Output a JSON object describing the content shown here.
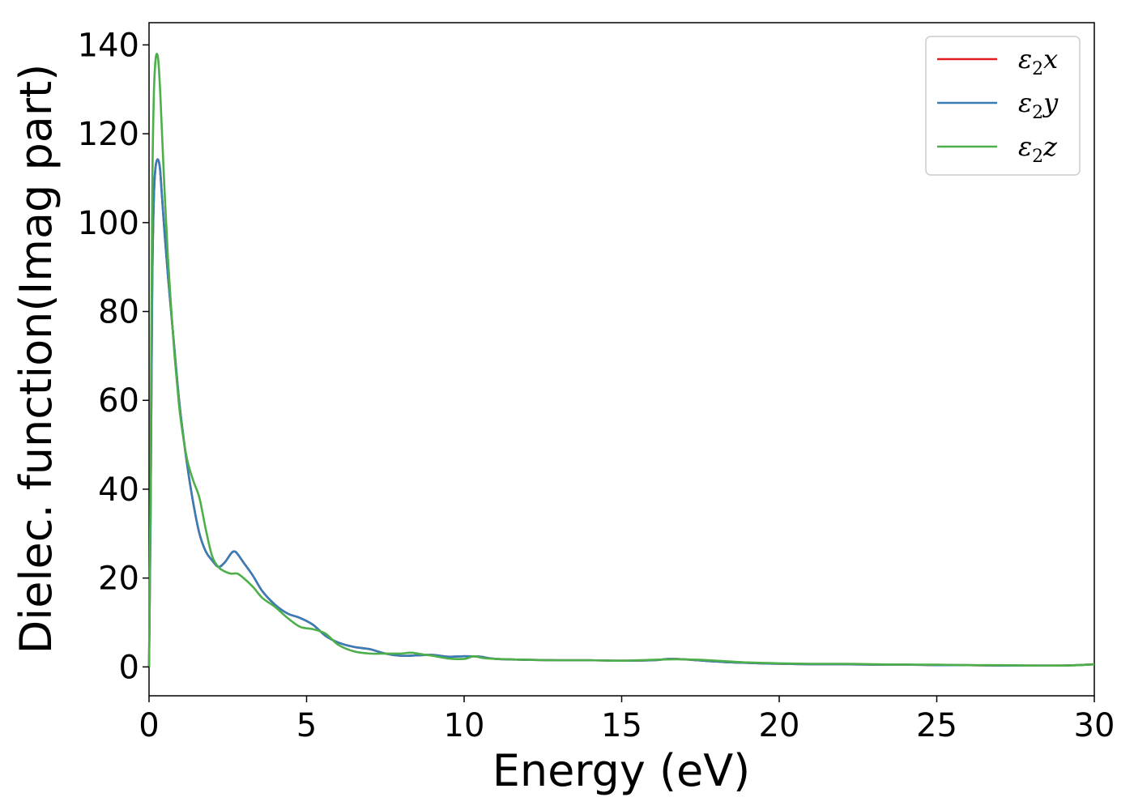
{
  "chart_data": {
    "type": "line",
    "title": "",
    "xlabel": "Energy (eV)",
    "ylabel": "Dielec. function(Imag part)",
    "xlim": [
      0,
      30
    ],
    "ylim": [
      -6.5,
      145
    ],
    "xticks": [
      0,
      5,
      10,
      15,
      20,
      25,
      30
    ],
    "yticks": [
      0,
      20,
      40,
      60,
      80,
      100,
      120,
      140
    ],
    "grid": false,
    "legend_position": "top-right",
    "series": [
      {
        "name": "ε2x",
        "legend_symbol": "ε",
        "legend_sub": "2",
        "legend_axis": "x",
        "color": "#e41a1c",
        "x": [
          0,
          0.05,
          0.1,
          0.15,
          0.2,
          0.25,
          0.3,
          0.35,
          0.4,
          0.5,
          0.6,
          0.7,
          0.8,
          0.9,
          1.0,
          1.2,
          1.4,
          1.6,
          1.8,
          2.0,
          2.2,
          2.4,
          2.6,
          2.7,
          2.8,
          3.0,
          3.3,
          3.6,
          4.0,
          4.4,
          4.8,
          5.2,
          5.6,
          6.0,
          6.5,
          7.0,
          7.5,
          8.0,
          8.5,
          9.0,
          9.5,
          10.0,
          10.5,
          11.0,
          12.0,
          13.0,
          14.0,
          15.0,
          16.0,
          16.5,
          17.0,
          18.0,
          19.0,
          20.0,
          21.0,
          22.0,
          23.0,
          24.0,
          25.0,
          26.0,
          27.0,
          28.0,
          29.0,
          29.5,
          30.0
        ],
        "values": [
          0,
          35,
          85,
          105,
          112,
          114,
          114,
          112,
          107,
          97,
          88,
          80,
          72,
          64,
          57,
          46,
          37,
          30,
          26,
          24,
          22.5,
          23.5,
          25.5,
          26,
          25.5,
          23.5,
          20.5,
          17,
          14,
          12,
          11,
          9.5,
          7,
          5.5,
          4.5,
          4,
          3,
          2.5,
          2.6,
          2.7,
          2.3,
          2.4,
          2.3,
          1.8,
          1.6,
          1.5,
          1.5,
          1.4,
          1.5,
          1.8,
          1.7,
          1.2,
          0.9,
          0.7,
          0.6,
          0.6,
          0.5,
          0.5,
          0.4,
          0.4,
          0.3,
          0.3,
          0.3,
          0.4,
          0.6
        ]
      },
      {
        "name": "ε2y",
        "legend_symbol": "ε",
        "legend_sub": "2",
        "legend_axis": "y",
        "color": "#377eb8",
        "x": [
          0,
          0.05,
          0.1,
          0.15,
          0.2,
          0.25,
          0.3,
          0.35,
          0.4,
          0.5,
          0.6,
          0.7,
          0.8,
          0.9,
          1.0,
          1.2,
          1.4,
          1.6,
          1.8,
          2.0,
          2.2,
          2.4,
          2.6,
          2.7,
          2.8,
          3.0,
          3.3,
          3.6,
          4.0,
          4.4,
          4.8,
          5.2,
          5.6,
          6.0,
          6.5,
          7.0,
          7.5,
          8.0,
          8.5,
          9.0,
          9.5,
          10.0,
          10.5,
          11.0,
          12.0,
          13.0,
          14.0,
          15.0,
          16.0,
          16.5,
          17.0,
          18.0,
          19.0,
          20.0,
          21.0,
          22.0,
          23.0,
          24.0,
          25.0,
          26.0,
          27.0,
          28.0,
          29.0,
          29.5,
          30.0
        ],
        "values": [
          0,
          35,
          85,
          105,
          112,
          114,
          114,
          112,
          107,
          97,
          88,
          80,
          72,
          64,
          57,
          46,
          37,
          30,
          26,
          24,
          22.5,
          23.5,
          25.5,
          26,
          25.5,
          23.5,
          20.5,
          17,
          14,
          12,
          11,
          9.5,
          7,
          5.5,
          4.5,
          4,
          3,
          2.5,
          2.6,
          2.7,
          2.3,
          2.4,
          2.3,
          1.8,
          1.6,
          1.5,
          1.5,
          1.4,
          1.5,
          1.8,
          1.7,
          1.2,
          0.9,
          0.7,
          0.6,
          0.6,
          0.5,
          0.5,
          0.4,
          0.4,
          0.3,
          0.3,
          0.3,
          0.4,
          0.6
        ]
      },
      {
        "name": "ε2z",
        "legend_symbol": "ε",
        "legend_sub": "2",
        "legend_axis": "z",
        "color": "#4daf4a",
        "x": [
          0,
          0.05,
          0.1,
          0.15,
          0.2,
          0.25,
          0.3,
          0.35,
          0.4,
          0.5,
          0.6,
          0.7,
          0.8,
          0.9,
          1.0,
          1.2,
          1.4,
          1.6,
          1.8,
          2.0,
          2.2,
          2.4,
          2.6,
          2.8,
          3.0,
          3.3,
          3.6,
          4.0,
          4.4,
          4.8,
          5.2,
          5.6,
          6.0,
          6.5,
          7.0,
          7.5,
          8.0,
          8.3,
          8.7,
          9.0,
          9.5,
          10.0,
          10.3,
          10.6,
          11.0,
          12.0,
          13.0,
          14.0,
          15.0,
          16.0,
          16.5,
          17.0,
          17.5,
          18.0,
          19.0,
          20.0,
          21.0,
          22.0,
          23.0,
          24.0,
          25.0,
          26.0,
          27.0,
          28.0,
          29.0,
          29.5,
          30.0
        ],
        "values": [
          0,
          45,
          105,
          128,
          136,
          138,
          136,
          130,
          122,
          106,
          92,
          81,
          71,
          63,
          56,
          47,
          42,
          38,
          31,
          25,
          22.5,
          21.5,
          21,
          21,
          20,
          18,
          15.5,
          13.5,
          11,
          9,
          8.5,
          7.5,
          5,
          3.5,
          3,
          3,
          3,
          3.2,
          2.8,
          2.5,
          1.9,
          1.8,
          2.4,
          2.0,
          1.8,
          1.6,
          1.5,
          1.5,
          1.4,
          1.6,
          1.7,
          1.7,
          1.6,
          1.4,
          1.0,
          0.8,
          0.7,
          0.7,
          0.6,
          0.5,
          0.5,
          0.4,
          0.4,
          0.3,
          0.3,
          0.4,
          0.6
        ]
      }
    ]
  }
}
